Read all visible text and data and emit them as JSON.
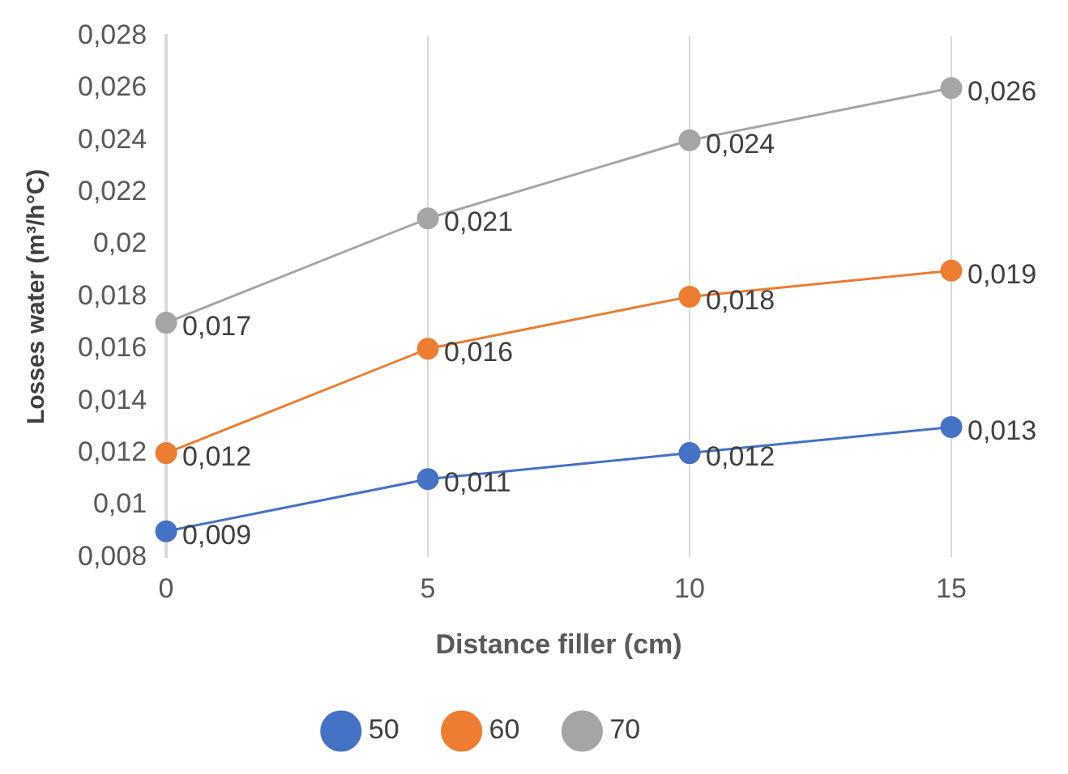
{
  "chart_data": {
    "type": "line",
    "xlabel": "Distance filler (cm)",
    "ylabel": "Losses water (m³/h°C)",
    "categories": [
      "0",
      "5",
      "10",
      "15"
    ],
    "series": [
      {
        "name": "50",
        "color": "#4472c4",
        "values": [
          0.009,
          0.011,
          0.012,
          0.013
        ],
        "value_labels": [
          "0,009",
          "0,011",
          "0,012",
          "0,013"
        ]
      },
      {
        "name": "60",
        "color": "#ed7d31",
        "values": [
          0.012,
          0.016,
          0.018,
          0.019
        ],
        "value_labels": [
          "0,012",
          "0,016",
          "0,018",
          "0,019"
        ]
      },
      {
        "name": "70",
        "color": "#a5a5a5",
        "values": [
          0.017,
          0.021,
          0.024,
          0.026
        ],
        "value_labels": [
          "0,017",
          "0,021",
          "0,024",
          "0,026"
        ]
      }
    ],
    "ylim": [
      0.008,
      0.028
    ],
    "yticks": [
      {
        "value": 0.008,
        "label": "0,008"
      },
      {
        "value": 0.01,
        "label": "0,01"
      },
      {
        "value": 0.012,
        "label": "0,012"
      },
      {
        "value": 0.014,
        "label": "0,014"
      },
      {
        "value": 0.016,
        "label": "0,016"
      },
      {
        "value": 0.018,
        "label": "0,018"
      },
      {
        "value": 0.02,
        "label": "0,02"
      },
      {
        "value": 0.022,
        "label": "0,022"
      },
      {
        "value": 0.024,
        "label": "0,024"
      },
      {
        "value": 0.026,
        "label": "0,026"
      },
      {
        "value": 0.028,
        "label": "0,028"
      }
    ],
    "grid": "x",
    "legend": "bottom",
    "marker": "circle",
    "line_style": "solid"
  }
}
